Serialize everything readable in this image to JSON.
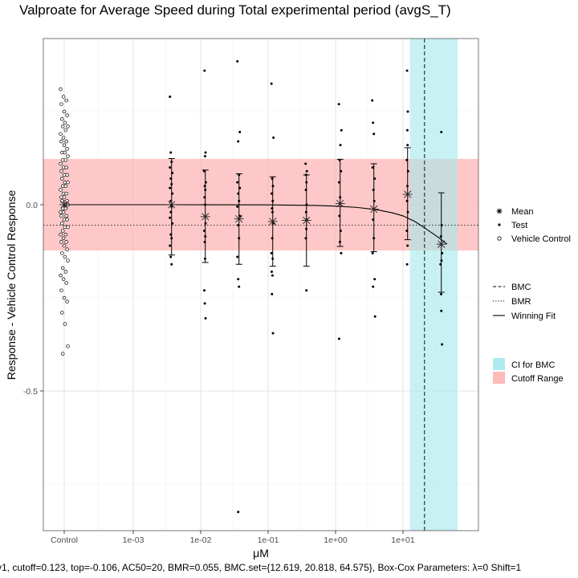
{
  "chart_data": {
    "type": "scatter",
    "title": "Valproate for Average Speed during Total experimental period (avgS_T)",
    "xlabel": "μM",
    "ylabel": "Response - Vehicle Control Response",
    "x_scale": "log10",
    "x_ticks": [
      {
        "label": "Control",
        "value": null
      },
      {
        "label": "1e-03",
        "value": 0.001
      },
      {
        "label": "1e-02",
        "value": 0.01
      },
      {
        "label": "1e-01",
        "value": 0.1
      },
      {
        "label": "1e+00",
        "value": 1
      },
      {
        "label": "1e+01",
        "value": 10
      }
    ],
    "y_ticks": [
      {
        "label": "0.0",
        "value": 0.0
      },
      {
        "label": "-0.5",
        "value": -0.5
      }
    ],
    "ylim": [
      -0.88,
      0.44
    ],
    "grid": true,
    "legend_position": "right",
    "cutoff": 0.123,
    "bmr": 0.055,
    "bmc": 20.818,
    "bmc_ci": [
      12.619,
      64.575
    ],
    "colors": {
      "ci_band": "#a6e8ec",
      "cutoff_band": "#ffb3b3"
    },
    "fit_curve": [
      [
        0.003,
        0.0
      ],
      [
        0.1,
        -0.0005
      ],
      [
        0.5,
        -0.002
      ],
      [
        1.0,
        -0.004
      ],
      [
        2.0,
        -0.007
      ],
      [
        4.0,
        -0.013
      ],
      [
        7.0,
        -0.022
      ],
      [
        10.0,
        -0.03
      ],
      [
        15.0,
        -0.045
      ],
      [
        20.0,
        -0.06
      ],
      [
        28.0,
        -0.078
      ],
      [
        36.0,
        -0.092
      ],
      [
        45.0,
        -0.106
      ]
    ],
    "series": [
      {
        "name": "Mean",
        "x": [
          0.0037,
          0.0117,
          0.037,
          0.117,
          0.37,
          1.17,
          3.7,
          11.7,
          37
        ],
        "y": [
          0.0,
          -0.032,
          -0.038,
          -0.045,
          -0.042,
          0.003,
          -0.012,
          0.028,
          -0.106
        ],
        "error_low": [
          -0.135,
          -0.155,
          -0.16,
          -0.165,
          -0.165,
          -0.112,
          -0.126,
          -0.094,
          -0.235
        ],
        "error_high": [
          0.124,
          0.093,
          0.083,
          0.075,
          0.08,
          0.122,
          0.11,
          0.153,
          0.032
        ]
      },
      {
        "name": "Test",
        "points": [
          [
            0.0035,
            0.29
          ],
          [
            0.0036,
            0.14
          ],
          [
            0.0037,
            0.115
          ],
          [
            0.0035,
            0.1
          ],
          [
            0.0038,
            0.085
          ],
          [
            0.0036,
            0.07
          ],
          [
            0.0037,
            0.055
          ],
          [
            0.0035,
            0.045
          ],
          [
            0.0038,
            0.03
          ],
          [
            0.0036,
            0.01
          ],
          [
            0.0037,
            -0.005
          ],
          [
            0.0036,
            -0.02
          ],
          [
            0.0035,
            -0.035
          ],
          [
            0.0038,
            -0.05
          ],
          [
            0.0036,
            -0.08
          ],
          [
            0.0037,
            -0.09
          ],
          [
            0.0035,
            -0.11
          ],
          [
            0.0036,
            -0.14
          ],
          [
            0.0037,
            -0.16
          ],
          [
            0.0114,
            0.36
          ],
          [
            0.0118,
            0.14
          ],
          [
            0.0116,
            0.13
          ],
          [
            0.0113,
            0.09
          ],
          [
            0.0119,
            0.06
          ],
          [
            0.0115,
            0.05
          ],
          [
            0.0117,
            0.04
          ],
          [
            0.0114,
            0.02
          ],
          [
            0.0116,
            0.0
          ],
          [
            0.0118,
            -0.05
          ],
          [
            0.0113,
            -0.07
          ],
          [
            0.0117,
            -0.085
          ],
          [
            0.0115,
            -0.1
          ],
          [
            0.0116,
            -0.145
          ],
          [
            0.0113,
            -0.23
          ],
          [
            0.0115,
            -0.265
          ],
          [
            0.0118,
            -0.305
          ],
          [
            0.035,
            0.385
          ],
          [
            0.038,
            0.195
          ],
          [
            0.036,
            0.17
          ],
          [
            0.037,
            0.08
          ],
          [
            0.035,
            0.06
          ],
          [
            0.038,
            0.045
          ],
          [
            0.036,
            0.03
          ],
          [
            0.037,
            0.01
          ],
          [
            0.035,
            -0.005
          ],
          [
            0.038,
            -0.03
          ],
          [
            0.036,
            -0.055
          ],
          [
            0.037,
            -0.09
          ],
          [
            0.035,
            -0.14
          ],
          [
            0.036,
            -0.2
          ],
          [
            0.037,
            -0.22
          ],
          [
            0.036,
            -0.825
          ],
          [
            0.112,
            0.325
          ],
          [
            0.12,
            0.18
          ],
          [
            0.115,
            0.07
          ],
          [
            0.118,
            0.05
          ],
          [
            0.113,
            0.03
          ],
          [
            0.117,
            0.01
          ],
          [
            0.114,
            -0.01
          ],
          [
            0.116,
            -0.02
          ],
          [
            0.119,
            -0.05
          ],
          [
            0.115,
            -0.09
          ],
          [
            0.112,
            -0.13
          ],
          [
            0.117,
            -0.145
          ],
          [
            0.113,
            -0.18
          ],
          [
            0.116,
            -0.19
          ],
          [
            0.114,
            -0.24
          ],
          [
            0.118,
            -0.345
          ],
          [
            0.36,
            0.11
          ],
          [
            0.375,
            0.09
          ],
          [
            0.365,
            0.08
          ],
          [
            0.37,
            0.06
          ],
          [
            0.363,
            0.04
          ],
          [
            0.372,
            0.0
          ],
          [
            0.366,
            -0.02
          ],
          [
            0.374,
            -0.04
          ],
          [
            0.368,
            -0.065
          ],
          [
            0.362,
            -0.09
          ],
          [
            0.37,
            -0.23
          ],
          [
            1.12,
            0.27
          ],
          [
            1.22,
            0.2
          ],
          [
            1.18,
            0.16
          ],
          [
            1.15,
            0.12
          ],
          [
            1.2,
            0.09
          ],
          [
            1.13,
            0.06
          ],
          [
            1.17,
            0.02
          ],
          [
            1.14,
            -0.03
          ],
          [
            1.19,
            -0.07
          ],
          [
            1.16,
            -0.1
          ],
          [
            1.21,
            -0.13
          ],
          [
            1.13,
            -0.36
          ],
          [
            3.5,
            0.28
          ],
          [
            3.6,
            0.22
          ],
          [
            3.7,
            0.19
          ],
          [
            3.55,
            0.1
          ],
          [
            3.8,
            0.07
          ],
          [
            3.65,
            0.04
          ],
          [
            3.75,
            0.01
          ],
          [
            3.6,
            -0.04
          ],
          [
            3.7,
            -0.09
          ],
          [
            3.55,
            -0.13
          ],
          [
            3.8,
            -0.2
          ],
          [
            3.6,
            -0.22
          ],
          [
            3.85,
            -0.3
          ],
          [
            11.5,
            0.36
          ],
          [
            11.8,
            0.25
          ],
          [
            11.6,
            0.2
          ],
          [
            11.7,
            0.16
          ],
          [
            11.4,
            0.12
          ],
          [
            11.9,
            0.09
          ],
          [
            11.6,
            0.05
          ],
          [
            11.5,
            0.01
          ],
          [
            11.8,
            -0.02
          ],
          [
            11.4,
            -0.07
          ],
          [
            11.7,
            -0.11
          ],
          [
            11.5,
            -0.16
          ],
          [
            37,
            0.195
          ],
          [
            37.5,
            -0.055
          ],
          [
            36.5,
            -0.085
          ],
          [
            38,
            -0.13
          ],
          [
            36,
            -0.16
          ],
          [
            37.2,
            -0.15
          ],
          [
            36.8,
            -0.24
          ],
          [
            37,
            -0.285
          ],
          [
            38,
            -0.375
          ]
        ]
      },
      {
        "name": "Vehicle Control",
        "y": [
          0.31,
          0.29,
          0.28,
          0.27,
          0.25,
          0.24,
          0.23,
          0.22,
          0.21,
          0.21,
          0.2,
          0.19,
          0.18,
          0.17,
          0.17,
          0.16,
          0.15,
          0.14,
          0.14,
          0.13,
          0.12,
          0.12,
          0.11,
          0.1,
          0.1,
          0.09,
          0.08,
          0.08,
          0.07,
          0.06,
          0.06,
          0.05,
          0.05,
          0.04,
          0.03,
          0.03,
          0.02,
          0.02,
          0.01,
          0.01,
          0.0,
          0.0,
          -0.01,
          -0.01,
          -0.02,
          -0.02,
          -0.03,
          -0.03,
          -0.04,
          -0.04,
          -0.05,
          -0.06,
          -0.06,
          -0.07,
          -0.08,
          -0.08,
          -0.09,
          -0.1,
          -0.1,
          -0.11,
          -0.12,
          -0.13,
          -0.14,
          -0.15,
          -0.17,
          -0.18,
          -0.19,
          -0.2,
          -0.21,
          -0.23,
          -0.25,
          -0.26,
          -0.29,
          -0.32,
          -0.38,
          -0.4
        ]
      }
    ]
  },
  "legend": {
    "points": [
      {
        "label": "Mean",
        "symbol": "asterisk"
      },
      {
        "label": "Test",
        "symbol": "dot"
      },
      {
        "label": "Vehicle Control",
        "symbol": "circle"
      }
    ],
    "lines": [
      {
        "label": "BMC",
        "style": "dashed"
      },
      {
        "label": "BMR",
        "style": "dotted"
      },
      {
        "label": "Winning Fit",
        "style": "solid"
      }
    ],
    "fills": [
      {
        "label": "CI for BMC",
        "color": "#a6e8ec"
      },
      {
        "label": "Cutoff Range",
        "color": "#ffb3b3"
      }
    ]
  },
  "caption": "y1, cutoff=0.123, top=-0.106, AC50=20, BMR=0.055, BMC.set={12.619, 20.818, 64.575}, Box-Cox Parameters: λ=0 Shift=1"
}
